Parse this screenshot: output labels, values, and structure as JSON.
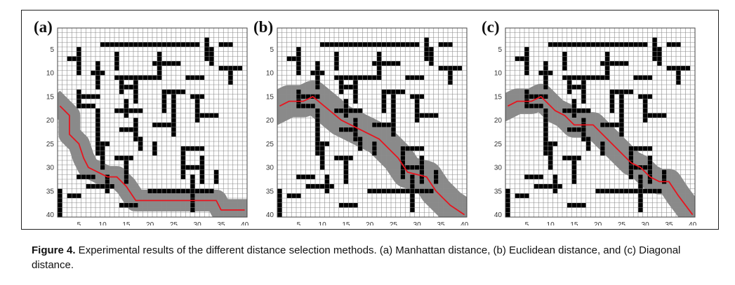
{
  "figure": {
    "caption_label": "Figure 4.",
    "caption_text": " Experimental results of the different distance selection methods. (a) Manhattan distance, (b) Euclidean distance, and (c) Diagonal distance."
  },
  "grid": {
    "size": 40,
    "ticks": [
      5,
      10,
      15,
      20,
      25,
      30,
      35,
      40
    ]
  },
  "obstacles": {
    "horizontal": [
      [
        4,
        10,
        30
      ],
      [
        4,
        35,
        37
      ],
      [
        7,
        3,
        5
      ],
      [
        8,
        21,
        26
      ],
      [
        9,
        35,
        39
      ],
      [
        10,
        8,
        10
      ],
      [
        11,
        13,
        22
      ],
      [
        11,
        28,
        31
      ],
      [
        13,
        15,
        17
      ],
      [
        14,
        24,
        27
      ],
      [
        15,
        6,
        9
      ],
      [
        15,
        29,
        31
      ],
      [
        17,
        6,
        8
      ],
      [
        18,
        13,
        18
      ],
      [
        19,
        31,
        34
      ],
      [
        21,
        21,
        24
      ],
      [
        22,
        14,
        17
      ],
      [
        25,
        9,
        11
      ],
      [
        26,
        27,
        31
      ],
      [
        28,
        13,
        16
      ],
      [
        30,
        28,
        31
      ],
      [
        32,
        5,
        8
      ],
      [
        34,
        7,
        12
      ],
      [
        35,
        20,
        33
      ],
      [
        36,
        3,
        5
      ],
      [
        38,
        14,
        17
      ]
    ],
    "vertical": [
      [
        5,
        5,
        10
      ],
      [
        5,
        14,
        17
      ],
      [
        9,
        8,
        13
      ],
      [
        9,
        18,
        27
      ],
      [
        10,
        26,
        30
      ],
      [
        11,
        32,
        35
      ],
      [
        13,
        6,
        9
      ],
      [
        14,
        11,
        14
      ],
      [
        15,
        16,
        19
      ],
      [
        15,
        29,
        33
      ],
      [
        17,
        12,
        16
      ],
      [
        17,
        20,
        24
      ],
      [
        18,
        24,
        26
      ],
      [
        21,
        25,
        27
      ],
      [
        22,
        6,
        10
      ],
      [
        23,
        14,
        18
      ],
      [
        25,
        15,
        23
      ],
      [
        27,
        27,
        32
      ],
      [
        29,
        32,
        39
      ],
      [
        30,
        16,
        20
      ],
      [
        31,
        28,
        33
      ],
      [
        32,
        3,
        7
      ],
      [
        33,
        5,
        8
      ],
      [
        34,
        31,
        33
      ],
      [
        37,
        10,
        12
      ],
      [
        1,
        35,
        40
      ]
    ]
  },
  "panels": [
    {
      "label": "(a)",
      "method": "Manhattan",
      "path": [
        [
          1,
          17
        ],
        [
          3,
          19
        ],
        [
          3,
          23
        ],
        [
          5,
          25
        ],
        [
          6,
          28
        ],
        [
          7,
          30
        ],
        [
          11,
          32
        ],
        [
          13,
          32
        ],
        [
          15,
          34
        ],
        [
          17,
          37
        ],
        [
          34,
          37
        ],
        [
          35,
          39
        ],
        [
          40,
          39
        ]
      ],
      "band": 2.3
    },
    {
      "label": "(b)",
      "method": "Euclidean",
      "path": [
        [
          1,
          17
        ],
        [
          3,
          16
        ],
        [
          6,
          16
        ],
        [
          8,
          15
        ],
        [
          14,
          20
        ],
        [
          18,
          22
        ],
        [
          22,
          24
        ],
        [
          26,
          28
        ],
        [
          28,
          31
        ],
        [
          32,
          32
        ],
        [
          34,
          35
        ],
        [
          37,
          38
        ],
        [
          40,
          40
        ]
      ],
      "band": 3.4
    },
    {
      "label": "(c)",
      "method": "Diagonal",
      "path": [
        [
          1,
          17
        ],
        [
          3,
          16
        ],
        [
          6,
          16
        ],
        [
          8,
          15
        ],
        [
          11,
          18
        ],
        [
          13,
          19
        ],
        [
          15,
          21
        ],
        [
          19,
          21
        ],
        [
          24,
          26
        ],
        [
          27,
          29
        ],
        [
          29,
          30
        ],
        [
          31,
          32
        ],
        [
          33,
          33
        ],
        [
          35,
          33
        ],
        [
          37,
          36
        ],
        [
          40,
          40
        ]
      ],
      "band": 2.7
    }
  ],
  "colors": {
    "path": "#e8141e",
    "explored": "#8a8a8a",
    "obstacle": "#000000",
    "gridline": "#8c8c8c"
  }
}
